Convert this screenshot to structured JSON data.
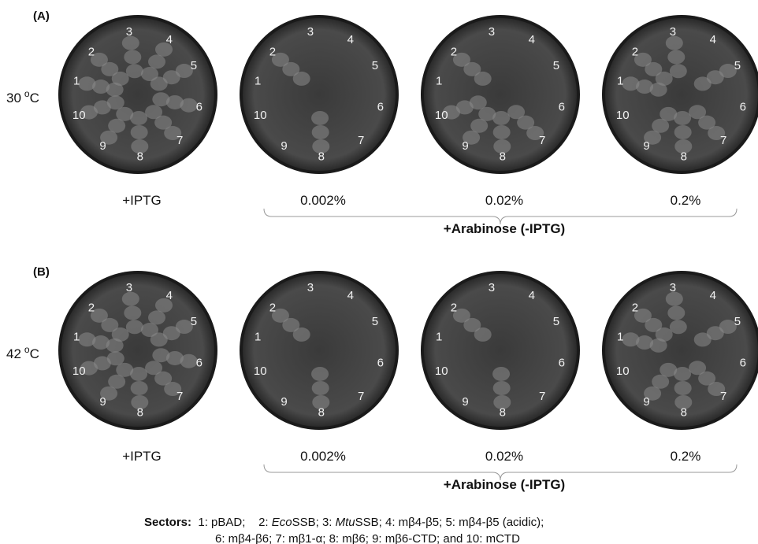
{
  "panels": [
    {
      "label": "(A)",
      "temperature": {
        "value": "30",
        "degree": "o",
        "unit": "C"
      },
      "plates": [
        {
          "condition": "+IPTG"
        },
        {
          "condition": "0.002%"
        },
        {
          "condition": "0.02%"
        },
        {
          "condition": "0.2%"
        }
      ],
      "bracket_label": "+Arabinose (-IPTG)"
    },
    {
      "label": "(B)",
      "temperature": {
        "value": "42",
        "degree": "o",
        "unit": "C"
      },
      "plates": [
        {
          "condition": "+IPTG"
        },
        {
          "condition": "0.002%"
        },
        {
          "condition": "0.02%"
        },
        {
          "condition": "0.2%"
        }
      ],
      "bracket_label": "+Arabinose (-IPTG)"
    }
  ],
  "sector_numbers": [
    "1",
    "2",
    "3",
    "4",
    "5",
    "6",
    "7",
    "8",
    "9",
    "10"
  ],
  "legend": {
    "title": "Sectors:",
    "lines": [
      [
        {
          "text": "  1: pBAD;    2: "
        },
        {
          "text": "Eco",
          "italic": true
        },
        {
          "text": "SSB; 3: "
        },
        {
          "text": "Mtu",
          "italic": true
        },
        {
          "text": "SSB; 4: mβ4-β5; 5: mβ4-β5 (acidic);"
        }
      ],
      [
        {
          "text": "6: mβ4-β6; 7: mβ1-α; 8: mβ6; 9: mβ6-CTD; and 10: mCTD"
        }
      ]
    ]
  }
}
